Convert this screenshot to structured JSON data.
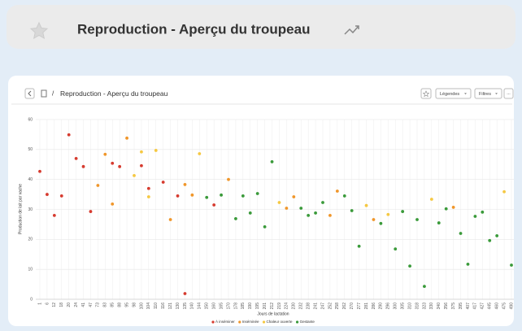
{
  "header": {
    "title": "Reproduction - Aperçu du troupeau"
  },
  "toolbar": {
    "breadcrumb": "Reproduction - Aperçu du troupeau",
    "legend_button": "Légendes",
    "filter_button": "Filtres",
    "more_button": "..."
  },
  "chart_data": {
    "type": "scatter",
    "ylabel": "Production de lait par vache",
    "xlabel": "Jours de lactation",
    "ylim": [
      0,
      60
    ],
    "yticks": [
      0,
      10,
      20,
      30,
      40,
      50,
      60
    ],
    "grid": true,
    "categories": [
      1,
      6,
      12,
      18,
      20,
      24,
      41,
      47,
      73,
      83,
      85,
      88,
      95,
      98,
      100,
      104,
      110,
      116,
      121,
      130,
      135,
      140,
      144,
      150,
      160,
      165,
      170,
      178,
      185,
      190,
      195,
      201,
      212,
      219,
      224,
      230,
      232,
      238,
      241,
      247,
      252,
      258,
      262,
      270,
      277,
      281,
      286,
      290,
      296,
      300,
      305,
      310,
      318,
      323,
      330,
      340,
      356,
      375,
      395,
      407,
      417,
      427,
      445,
      460,
      475,
      490
    ],
    "series": [
      {
        "name": "À inséminer",
        "color": "#d63b2f",
        "values": [
          42.7,
          35,
          28,
          34.5,
          54.9,
          47,
          44.3,
          29.3,
          null,
          null,
          45.4,
          44.3,
          null,
          null,
          44.6,
          37,
          null,
          39.1,
          null,
          34.5,
          1.9,
          null,
          null,
          null,
          31.5,
          null,
          null,
          null,
          null,
          null,
          null,
          null,
          null,
          null,
          null,
          null,
          null,
          null,
          null,
          null,
          null,
          null,
          null,
          null,
          null,
          null,
          null,
          null,
          null,
          null,
          null,
          null,
          null,
          null,
          null,
          null,
          null,
          null,
          null,
          null,
          null,
          null,
          null,
          null,
          null,
          null
        ]
      },
      {
        "name": "Inséminée",
        "color": "#f0962a",
        "values": [
          null,
          null,
          null,
          null,
          null,
          null,
          null,
          null,
          38,
          48.4,
          31.8,
          null,
          53.8,
          null,
          null,
          null,
          null,
          null,
          26.6,
          null,
          38.3,
          34.8,
          null,
          null,
          null,
          null,
          40,
          null,
          null,
          null,
          null,
          null,
          null,
          null,
          30.4,
          34.2,
          null,
          null,
          null,
          null,
          28,
          36.1,
          null,
          null,
          null,
          null,
          26.6,
          null,
          null,
          null,
          null,
          null,
          null,
          null,
          null,
          null,
          null,
          30.7,
          null,
          null,
          null,
          null,
          null,
          null,
          null,
          null
        ]
      },
      {
        "name": "Chaleur ouverte",
        "color": "#f5c842",
        "values": [
          null,
          null,
          null,
          null,
          null,
          null,
          null,
          null,
          null,
          null,
          null,
          null,
          null,
          41.3,
          49.2,
          34.2,
          49.7,
          null,
          null,
          null,
          null,
          null,
          48.6,
          null,
          null,
          null,
          null,
          null,
          null,
          null,
          null,
          null,
          null,
          32.3,
          null,
          null,
          null,
          null,
          null,
          null,
          null,
          null,
          null,
          null,
          null,
          31.3,
          null,
          null,
          28.3,
          null,
          null,
          null,
          null,
          null,
          33.4,
          null,
          null,
          null,
          null,
          null,
          null,
          null,
          null,
          null,
          35.9,
          null
        ]
      },
      {
        "name": "Gestante",
        "color": "#3a9a3a",
        "values": [
          null,
          null,
          null,
          null,
          null,
          null,
          null,
          null,
          null,
          null,
          null,
          null,
          null,
          null,
          null,
          null,
          null,
          null,
          null,
          null,
          null,
          null,
          null,
          34,
          null,
          34.8,
          null,
          26.9,
          34.5,
          28.8,
          35.3,
          24.2,
          45.9,
          null,
          null,
          null,
          30.4,
          28,
          28.8,
          32.3,
          null,
          null,
          34.5,
          29.6,
          17.7,
          null,
          null,
          25.3,
          null,
          16.8,
          29.3,
          11.1,
          26.6,
          4.3,
          null,
          25.5,
          30.2,
          null,
          22,
          11.7,
          27.7,
          29.1,
          19.6,
          21.2,
          null,
          11.4
        ]
      }
    ]
  }
}
